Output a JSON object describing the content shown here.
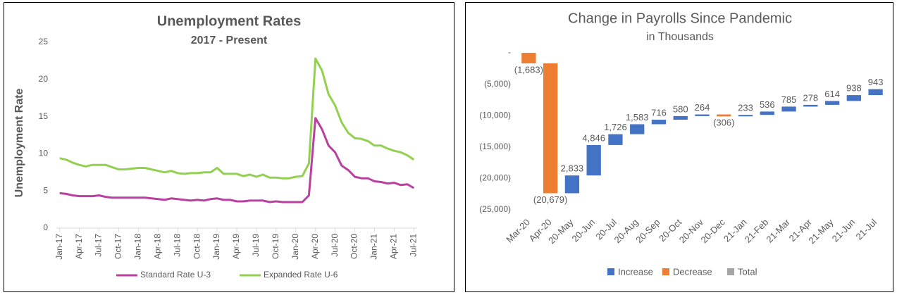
{
  "chart_data": [
    {
      "type": "line",
      "title": "Unemployment Rates",
      "subtitle": "2017 - Present",
      "y_label": "Unemployment Rate",
      "categories": [
        "Jan-17",
        null,
        null,
        "Apr-17",
        null,
        null,
        "Jul-17",
        null,
        null,
        "Oct-17",
        null,
        null,
        "Jan-18",
        null,
        null,
        "Apr-18",
        null,
        null,
        "Jul-18",
        null,
        null,
        "Oct-18",
        null,
        null,
        "Jan-19",
        null,
        null,
        "Apr-19",
        null,
        null,
        "Jul-19",
        null,
        null,
        "Oct-19",
        null,
        null,
        "Jan-20",
        null,
        null,
        "Apr-20",
        null,
        null,
        "Jul-20",
        null,
        null,
        "Oct-20",
        null,
        null,
        "Jan-21",
        null,
        null,
        "Apr-21",
        null,
        null,
        "Jul-21"
      ],
      "series": [
        {
          "name": "Standard Rate U-3",
          "color": "#b8409e",
          "values": [
            4.7,
            4.6,
            4.4,
            4.3,
            4.3,
            4.3,
            4.4,
            4.2,
            4.1,
            4.1,
            4.1,
            4.1,
            4.1,
            4.1,
            4.0,
            3.9,
            3.8,
            4.0,
            3.9,
            3.8,
            3.7,
            3.8,
            3.7,
            3.9,
            4.0,
            3.8,
            3.8,
            3.6,
            3.6,
            3.7,
            3.7,
            3.7,
            3.5,
            3.6,
            3.5,
            3.5,
            3.5,
            3.5,
            4.4,
            14.8,
            13.3,
            11.1,
            10.2,
            8.4,
            7.8,
            6.9,
            6.7,
            6.7,
            6.3,
            6.2,
            6.0,
            6.1,
            5.8,
            5.9,
            5.4
          ]
        },
        {
          "name": "Expanded Rate U-6",
          "color": "#92d050",
          "values": [
            9.4,
            9.2,
            8.8,
            8.5,
            8.3,
            8.5,
            8.5,
            8.5,
            8.2,
            7.9,
            7.9,
            8.0,
            8.1,
            8.1,
            7.9,
            7.7,
            7.5,
            7.7,
            7.4,
            7.3,
            7.4,
            7.4,
            7.5,
            7.5,
            8.1,
            7.3,
            7.3,
            7.3,
            7.0,
            7.2,
            6.9,
            7.2,
            6.8,
            6.8,
            6.7,
            6.7,
            6.9,
            7.0,
            8.7,
            22.8,
            21.2,
            18.0,
            16.5,
            14.2,
            12.8,
            12.1,
            12.0,
            11.7,
            11.1,
            11.1,
            10.7,
            10.4,
            10.2,
            9.8,
            9.2
          ]
        }
      ],
      "ylim": [
        0,
        25
      ],
      "yticks": [
        0,
        5,
        10,
        15,
        20,
        25
      ],
      "grid": false,
      "legend": "bottom"
    },
    {
      "type": "waterfall",
      "title": "Change in Payrolls Since Pandemic",
      "subtitle": "in Thousands",
      "categories": [
        "Mar-20",
        "Apr-20",
        "20-May",
        "20-Jun",
        "20-Jul",
        "20-Aug",
        "20-Sep",
        "20-Oct",
        "20-Nov",
        "20-Dec",
        "21-Jan",
        "21-Feb",
        "21-Mar",
        "21-Apr",
        "21-May",
        "21-Jun",
        "21-Jul"
      ],
      "values": [
        -1683,
        -20679,
        2833,
        4846,
        1726,
        1583,
        716,
        580,
        264,
        -306,
        233,
        536,
        785,
        278,
        614,
        938,
        943
      ],
      "value_labels": [
        "(1,683)",
        "(20,679)",
        "2,833",
        "4,846",
        "1,726",
        "1,583",
        "716",
        "580",
        "264",
        "(306)",
        "233",
        "536",
        "785",
        "278",
        "614",
        "938",
        "943"
      ],
      "ylim": [
        -25000,
        0
      ],
      "yticks": [
        {
          "value": -25000,
          "label": "(25,000)"
        },
        {
          "value": -20000,
          "label": "(20,000)"
        },
        {
          "value": -15000,
          "label": "(15,000)"
        },
        {
          "value": -10000,
          "label": "(10,000)"
        },
        {
          "value": -5000,
          "label": "(5,000)"
        },
        {
          "value": 0,
          "label": "-"
        }
      ],
      "legend_entries": [
        {
          "name": "Increase",
          "color": "#4472c4"
        },
        {
          "name": "Decrease",
          "color": "#ed7d31"
        },
        {
          "name": "Total",
          "color": "#a5a5a5"
        }
      ],
      "legend": "bottom"
    }
  ]
}
